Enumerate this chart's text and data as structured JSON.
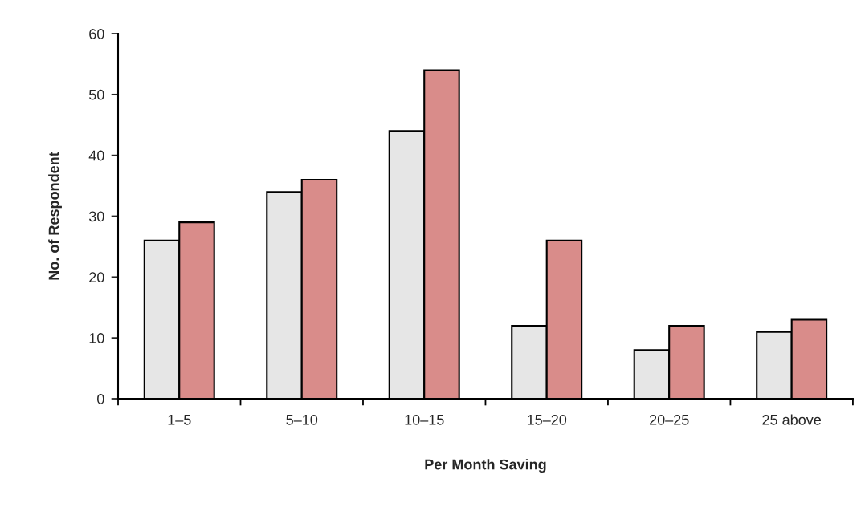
{
  "chart_data": {
    "type": "bar",
    "xlabel": "Per Month Saving",
    "ylabel": "No. of Respondent",
    "categories": [
      "1–5",
      "5–10",
      "10–15",
      "15–20",
      "20–25",
      "25 above"
    ],
    "series": [
      {
        "color": "#e6e6e6",
        "values": [
          26,
          34,
          44,
          12,
          8,
          11
        ]
      },
      {
        "color": "#d98c8a",
        "values": [
          29,
          36,
          54,
          26,
          12,
          13
        ]
      }
    ],
    "ylim": [
      0,
      60
    ],
    "yticks": [
      0,
      10,
      20,
      30,
      40,
      50,
      60
    ],
    "grid": false
  }
}
